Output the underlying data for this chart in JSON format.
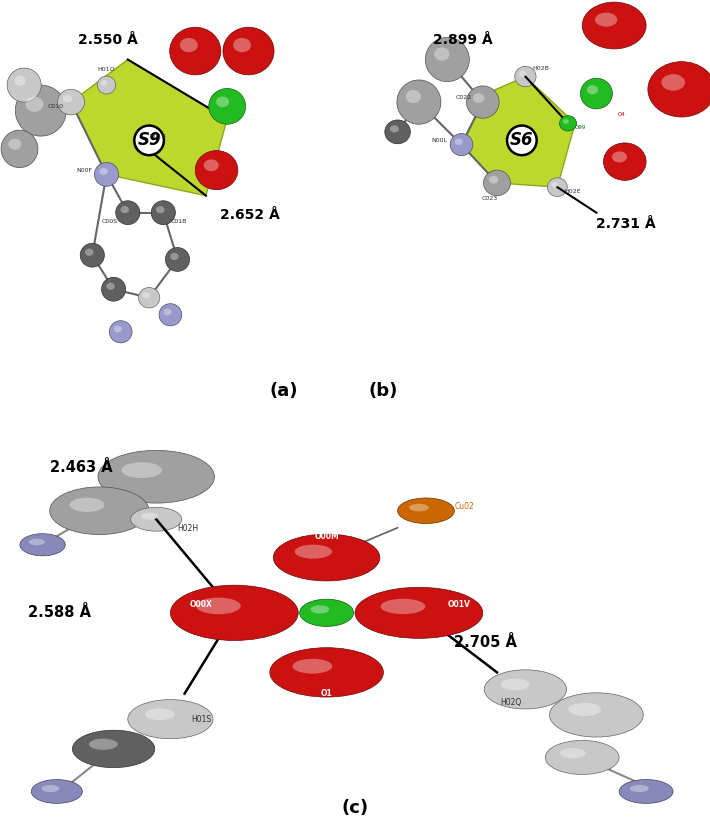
{
  "bg_color": "#ffffff",
  "panel_a": {
    "label": "(a)",
    "dist1": "2.550 Å",
    "dist2": "2.652 Å"
  },
  "panel_b": {
    "label": "(b)",
    "dist1": "2.899 Å",
    "dist2": "2.731 Å"
  },
  "panel_c": {
    "label": "(c)",
    "dist1": "2.463 Å",
    "dist2": "2.588 Å",
    "dist3": "2.705 Å"
  }
}
